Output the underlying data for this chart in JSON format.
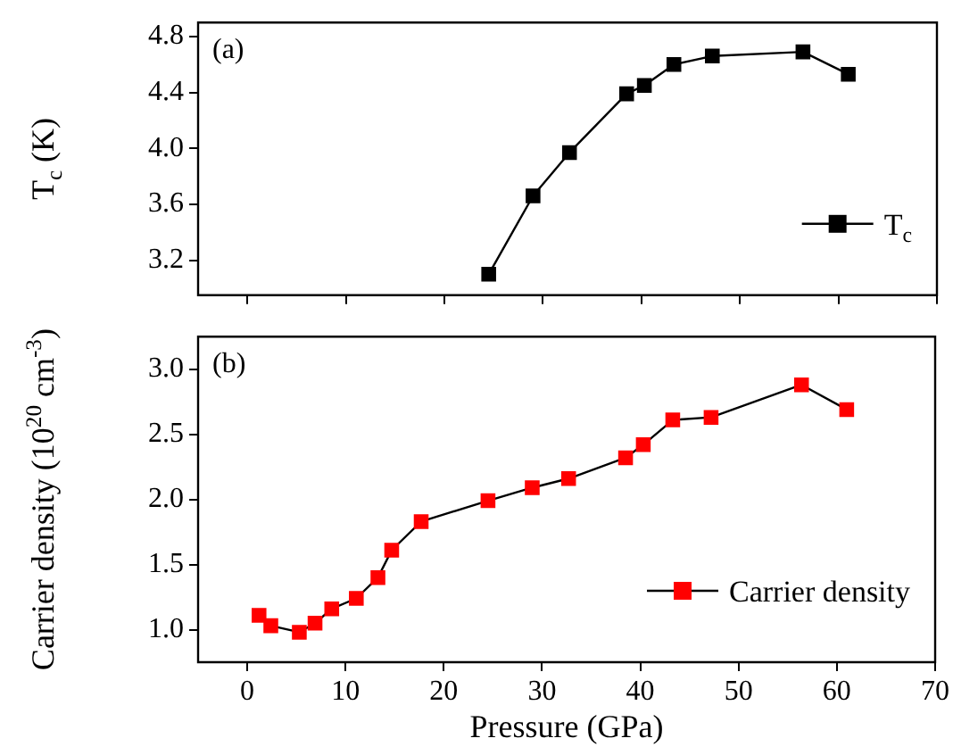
{
  "chart_data": [
    {
      "type": "line",
      "x": [
        24.5,
        29.0,
        32.7,
        38.5,
        40.3,
        43.3,
        47.2,
        56.4,
        61.0
      ],
      "series": [
        {
          "name": "T$_{c}$",
          "color": "#000000",
          "values": [
            3.1,
            3.66,
            3.97,
            4.39,
            4.45,
            4.6,
            4.66,
            4.69,
            4.53
          ]
        }
      ],
      "ylabel": "T$_{c}$ (K)",
      "xlim": [
        -5,
        70
      ],
      "xticks": [
        0,
        10,
        20,
        30,
        40,
        50,
        60,
        70
      ],
      "ylim": [
        2.95,
        4.9
      ],
      "yticks": [
        3.2,
        3.6,
        {
          "value": 4,
          "label": "4.0"
        },
        4.4,
        4.8
      ],
      "tick_labels": "y",
      "legend": "bottom right",
      "marker": "square",
      "annotations": [
        "(a)"
      ]
    },
    {
      "type": "line",
      "x": [
        1.2,
        2.4,
        5.3,
        6.9,
        8.6,
        11.1,
        13.3,
        14.7,
        17.7,
        24.5,
        29.0,
        32.7,
        38.5,
        40.3,
        43.3,
        47.2,
        56.4,
        61.0
      ],
      "series": [
        {
          "name": "Carrier density",
          "color": "#ff0000",
          "values": [
            1.11,
            1.03,
            0.98,
            1.05,
            1.16,
            1.24,
            1.4,
            1.61,
            1.83,
            1.99,
            2.09,
            2.16,
            2.32,
            2.42,
            2.61,
            2.63,
            2.88,
            2.69
          ]
        }
      ],
      "xlabel": "Pressure (GPa)",
      "ylabel": "Carrier density (10$^{20}$ cm$^{-3}$)",
      "xlim": [
        -5,
        70
      ],
      "xticks": [
        0,
        10,
        20,
        30,
        40,
        50,
        60,
        70
      ],
      "ylim": [
        0.75,
        3.25
      ],
      "yticks": [
        {
          "value": 1,
          "label": "1.0"
        },
        1.5,
        {
          "value": 2,
          "label": "2.0"
        },
        2.5,
        {
          "value": 3,
          "label": "3.0"
        }
      ],
      "legend": "bottom right",
      "marker": "square",
      "annotations": [
        "(b)"
      ]
    }
  ]
}
